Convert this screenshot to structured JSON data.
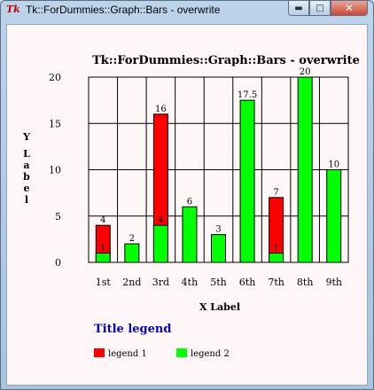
{
  "window": {
    "title": "Tk::ForDummies::Graph::Bars - overwrite",
    "app_icon": "Tk",
    "buttons": [
      "minimize-icon",
      "maximize-icon",
      "close-icon"
    ]
  },
  "chart_data": {
    "type": "bar",
    "mode": "overwrite",
    "title": "Tk::ForDummies::Graph::Bars - overwrite",
    "xlabel": "X Label",
    "ylabel": "Y Label",
    "categories": [
      "1st",
      "2nd",
      "3rd",
      "4th",
      "5th",
      "6th",
      "7th",
      "8th",
      "9th"
    ],
    "ylim": [
      0,
      20
    ],
    "yticks": [
      0,
      5,
      10,
      15,
      20
    ],
    "grid": true,
    "series": [
      {
        "name": "legend 1",
        "color": "#ff0000",
        "values": [
          4,
          null,
          16,
          null,
          null,
          null,
          7,
          null,
          null
        ],
        "labels": [
          "4",
          "",
          "16",
          "",
          "",
          "",
          "7",
          "",
          ""
        ]
      },
      {
        "name": "legend 2",
        "color": "#00ff00",
        "values": [
          1,
          2,
          4,
          6,
          3,
          17.5,
          1,
          20,
          10
        ],
        "labels": [
          "1",
          "2",
          "4",
          "6",
          "3",
          "17.5",
          "1",
          "20",
          "10"
        ]
      }
    ],
    "legend": {
      "title": "Title legend",
      "position": "bottom-left"
    }
  }
}
